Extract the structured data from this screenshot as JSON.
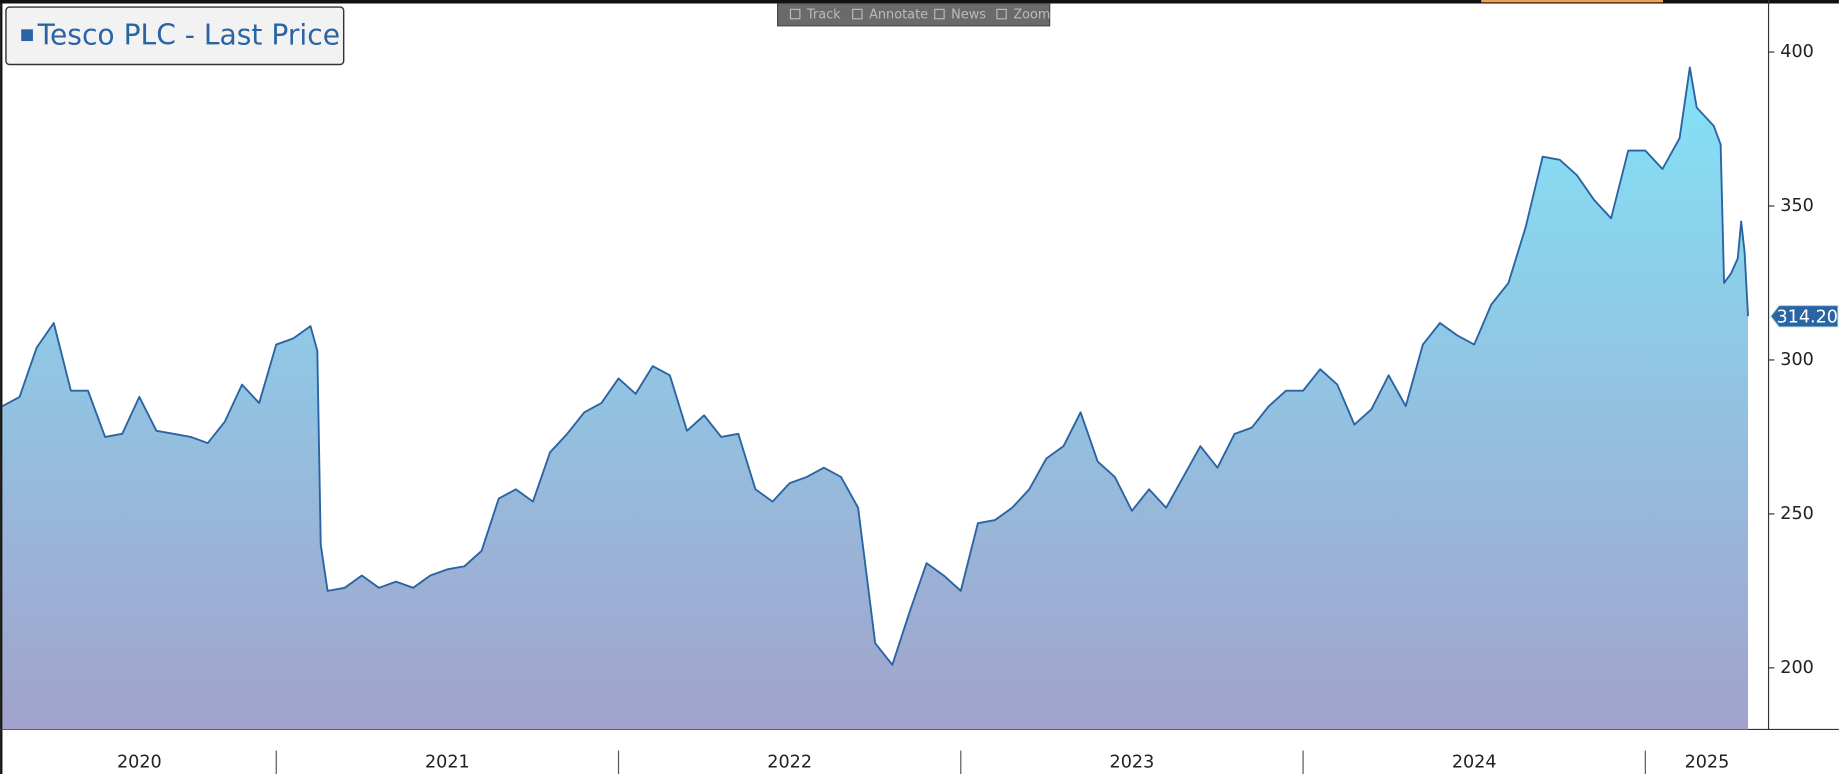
{
  "chart_data": {
    "type": "area",
    "toolbar": [
      "Track",
      "Annotate",
      "News",
      "Zoom"
    ],
    "series": [
      {
        "name": "Tesco PLC - Last Price",
        "color": "#2b64a3",
        "x": [
          2020.2,
          2020.25,
          2020.3,
          2020.35,
          2020.4,
          2020.45,
          2020.5,
          2020.55,
          2020.6,
          2020.65,
          2020.7,
          2020.75,
          2020.8,
          2020.85,
          2020.9,
          2020.95,
          2021.0,
          2021.05,
          2021.1,
          2021.12,
          2021.13,
          2021.15,
          2021.2,
          2021.25,
          2021.3,
          2021.35,
          2021.4,
          2021.45,
          2021.5,
          2021.55,
          2021.6,
          2021.65,
          2021.7,
          2021.75,
          2021.8,
          2021.85,
          2021.9,
          2021.95,
          2022.0,
          2022.05,
          2022.1,
          2022.15,
          2022.2,
          2022.25,
          2022.3,
          2022.35,
          2022.4,
          2022.45,
          2022.5,
          2022.55,
          2022.6,
          2022.65,
          2022.7,
          2022.75,
          2022.8,
          2022.85,
          2022.9,
          2022.95,
          2023.0,
          2023.05,
          2023.1,
          2023.15,
          2023.2,
          2023.25,
          2023.3,
          2023.35,
          2023.4,
          2023.45,
          2023.5,
          2023.55,
          2023.6,
          2023.65,
          2023.7,
          2023.75,
          2023.8,
          2023.85,
          2023.9,
          2023.95,
          2024.0,
          2024.05,
          2024.1,
          2024.15,
          2024.2,
          2024.25,
          2024.3,
          2024.35,
          2024.4,
          2024.45,
          2024.5,
          2024.55,
          2024.6,
          2024.65,
          2024.7,
          2024.75,
          2024.8,
          2024.85,
          2024.9,
          2024.95,
          2025.0,
          2025.05,
          2025.1,
          2025.13,
          2025.15,
          2025.2,
          2025.22,
          2025.23,
          2025.25,
          2025.27,
          2025.28,
          2025.29,
          2025.3
        ],
        "values": [
          285,
          288,
          304,
          312,
          290,
          290,
          275,
          276,
          288,
          277,
          276,
          275,
          273,
          280,
          292,
          286,
          305,
          307,
          311,
          303,
          240,
          225,
          226,
          230,
          226,
          228,
          226,
          230,
          232,
          233,
          238,
          255,
          258,
          254,
          270,
          276,
          283,
          286,
          294,
          289,
          298,
          295,
          277,
          282,
          275,
          276,
          258,
          254,
          260,
          262,
          265,
          262,
          252,
          208,
          201,
          218,
          234,
          230,
          225,
          247,
          248,
          252,
          258,
          268,
          272,
          283,
          267,
          262,
          251,
          258,
          252,
          262,
          272,
          265,
          276,
          278,
          285,
          290,
          290,
          297,
          292,
          279,
          284,
          295,
          285,
          305,
          312,
          308,
          305,
          318,
          325,
          343,
          366,
          365,
          360,
          352,
          346,
          368,
          368,
          362,
          372,
          395,
          382,
          376,
          370,
          325,
          328,
          333,
          345,
          335,
          314.2
        ]
      }
    ],
    "last_value_label": "314.20",
    "categories": [
      "2020",
      "2021",
      "2022",
      "2023",
      "2024",
      "2025"
    ],
    "xlim": [
      2020.2,
      2025.36
    ],
    "xticks": [
      2021,
      2022,
      2023,
      2024,
      2025
    ],
    "ylim": [
      180,
      415
    ],
    "yticks": [
      200,
      250,
      300,
      350,
      400
    ],
    "fill_top": "#82e4f8",
    "fill_bottom": "#a2a2cb"
  }
}
